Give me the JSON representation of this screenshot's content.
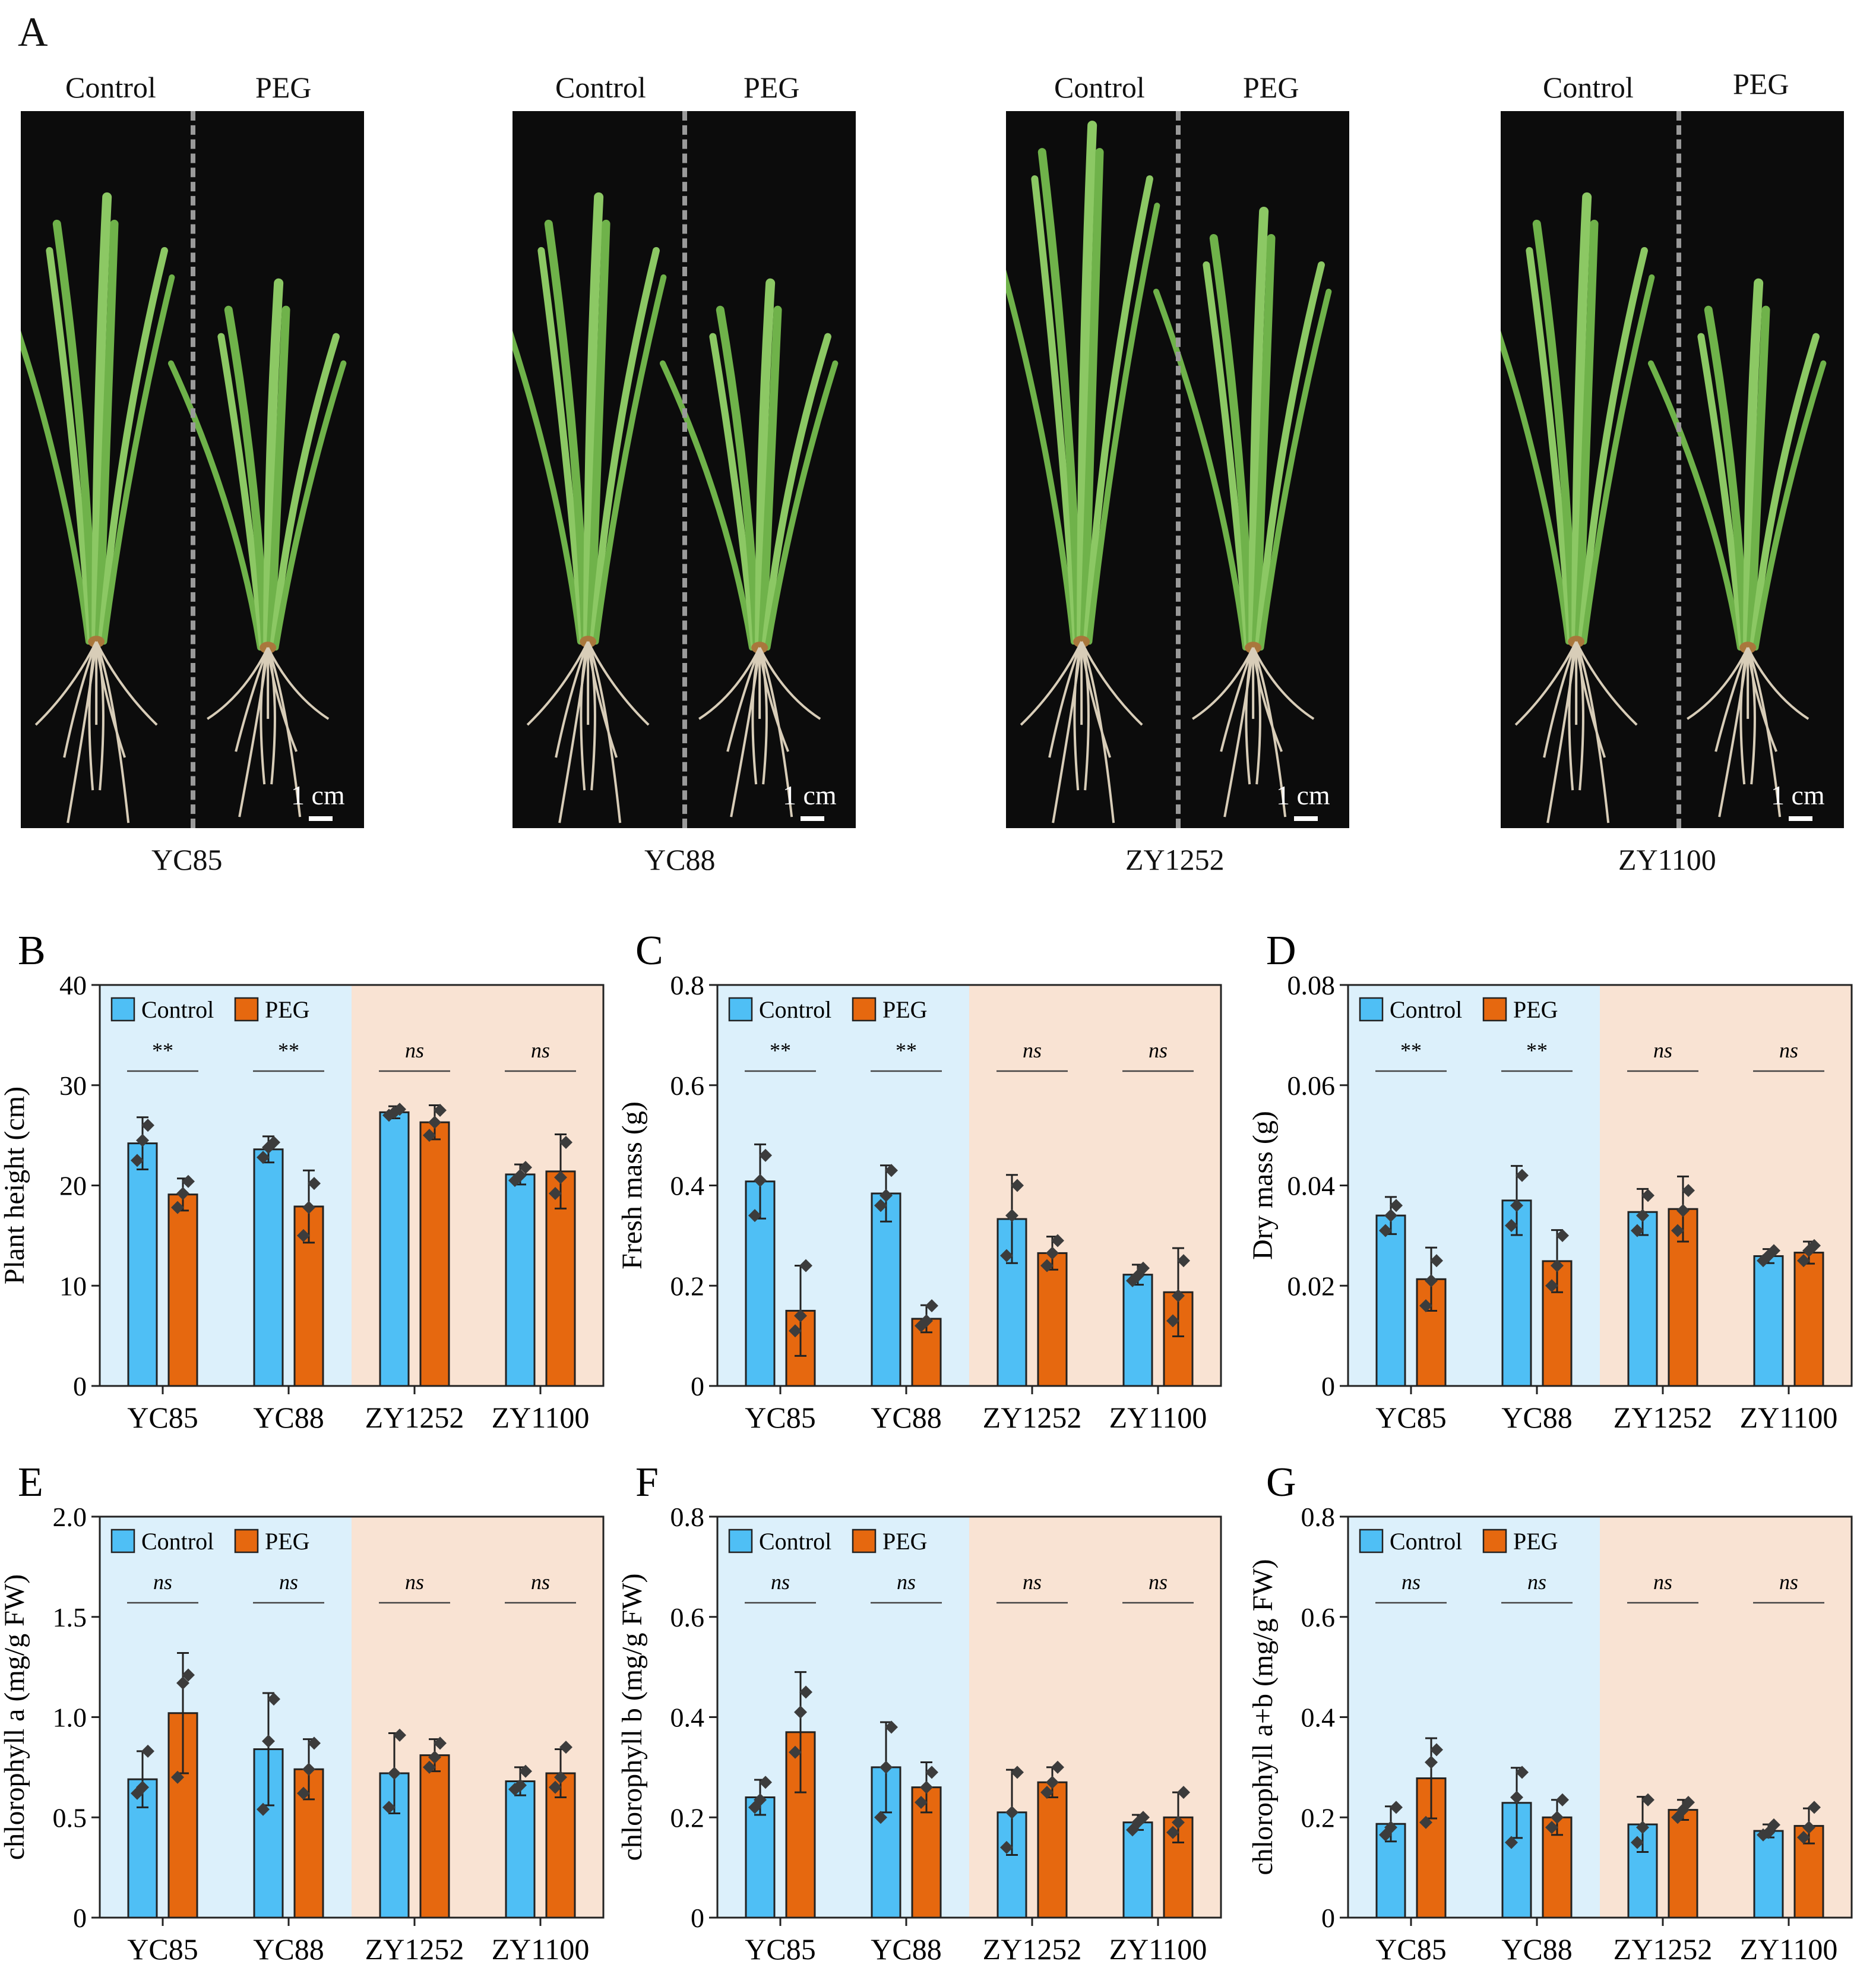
{
  "panel_a": {
    "letter": "A",
    "panels": [
      {
        "control_label": "Control",
        "peg_label": "PEG",
        "genotype": "YC85",
        "scale_label": "1 cm"
      },
      {
        "control_label": "Control",
        "peg_label": "PEG",
        "genotype": "YC88",
        "scale_label": "1 cm"
      },
      {
        "control_label": "Control",
        "peg_label": "PEG",
        "genotype": "ZY1252",
        "scale_label": "1 cm"
      },
      {
        "control_label": "Control",
        "peg_label": "PEG",
        "genotype": "ZY1100",
        "scale_label": "1 cm"
      }
    ]
  },
  "colors": {
    "control": "#4fbff5",
    "peg": "#e6680f",
    "bg_left": "#dcf0fb",
    "bg_right": "#f9e3d3",
    "point": "#3c3c3c"
  },
  "chart_data": [
    {
      "letter": "B",
      "type": "bar",
      "ylabel": "Plant height (cm)",
      "ylim": [
        0,
        40
      ],
      "yticks": [
        0,
        10,
        20,
        30,
        40
      ],
      "categories": [
        "YC85",
        "YC88",
        "ZY1252",
        "ZY1100"
      ],
      "legend": [
        "Control",
        "PEG"
      ],
      "significance": [
        "**",
        "**",
        "ns",
        "ns"
      ],
      "series": [
        {
          "name": "Control",
          "values": [
            24.2,
            23.6,
            27.3,
            21.1
          ],
          "errors": [
            2.6,
            1.3,
            0.6,
            1.0
          ],
          "points": [
            [
              22.5,
              24.5,
              26.0
            ],
            [
              22.8,
              23.8,
              24.3
            ],
            [
              27.0,
              27.3,
              27.6
            ],
            [
              20.5,
              21.0,
              21.8
            ]
          ]
        },
        {
          "name": "PEG",
          "values": [
            19.1,
            17.9,
            26.3,
            21.4
          ],
          "errors": [
            1.6,
            3.6,
            1.7,
            3.7
          ],
          "points": [
            [
              17.8,
              19.2,
              20.4
            ],
            [
              15.0,
              17.8,
              20.2
            ],
            [
              25.0,
              26.3,
              27.5
            ],
            [
              19.2,
              20.8,
              24.3
            ]
          ]
        }
      ]
    },
    {
      "letter": "C",
      "type": "bar",
      "ylabel": "Fresh mass (g)",
      "ylim": [
        0,
        0.8
      ],
      "yticks": [
        "0",
        "0.2",
        "0.4",
        "0.6",
        "0.8"
      ],
      "categories": [
        "YC85",
        "YC88",
        "ZY1252",
        "ZY1100"
      ],
      "legend": [
        "Control",
        "PEG"
      ],
      "significance": [
        "**",
        "**",
        "ns",
        "ns"
      ],
      "series": [
        {
          "name": "Control",
          "values": [
            0.408,
            0.384,
            0.333,
            0.222
          ],
          "errors": [
            0.074,
            0.056,
            0.088,
            0.02
          ],
          "points": [
            [
              0.34,
              0.41,
              0.46
            ],
            [
              0.36,
              0.38,
              0.43
            ],
            [
              0.26,
              0.34,
              0.4
            ],
            [
              0.21,
              0.22,
              0.235
            ]
          ]
        },
        {
          "name": "PEG",
          "values": [
            0.15,
            0.134,
            0.265,
            0.187
          ],
          "errors": [
            0.09,
            0.027,
            0.033,
            0.088
          ],
          "points": [
            [
              0.11,
              0.14,
              0.24
            ],
            [
              0.12,
              0.13,
              0.16
            ],
            [
              0.24,
              0.265,
              0.29
            ],
            [
              0.13,
              0.18,
              0.25
            ]
          ]
        }
      ]
    },
    {
      "letter": "D",
      "type": "bar",
      "ylabel": "Dry mass (g)",
      "ylim": [
        0,
        0.08
      ],
      "yticks": [
        "0",
        "0.02",
        "0.04",
        "0.06",
        "0.08"
      ],
      "categories": [
        "YC85",
        "YC88",
        "ZY1252",
        "ZY1100"
      ],
      "legend": [
        "Control",
        "PEG"
      ],
      "significance": [
        "**",
        "**",
        "ns",
        "ns"
      ],
      "series": [
        {
          "name": "Control",
          "values": [
            0.034,
            0.037,
            0.0347,
            0.0259
          ],
          "errors": [
            0.0037,
            0.0069,
            0.0046,
            0.0014
          ],
          "points": [
            [
              0.031,
              0.034,
              0.036
            ],
            [
              0.032,
              0.036,
              0.042
            ],
            [
              0.031,
              0.034,
              0.038
            ],
            [
              0.025,
              0.026,
              0.027
            ]
          ]
        },
        {
          "name": "PEG",
          "values": [
            0.0213,
            0.0249,
            0.0353,
            0.0266
          ],
          "errors": [
            0.0063,
            0.0062,
            0.0065,
            0.0022
          ],
          "points": [
            [
              0.016,
              0.021,
              0.025
            ],
            [
              0.02,
              0.024,
              0.03
            ],
            [
              0.031,
              0.035,
              0.039
            ],
            [
              0.025,
              0.027,
              0.028
            ]
          ]
        }
      ]
    },
    {
      "letter": "E",
      "type": "bar",
      "ylabel": "chlorophyll a (mg/g FW)",
      "ylim": [
        0,
        2.0
      ],
      "yticks": [
        "0",
        "0.5",
        "1.0",
        "1.5",
        "2.0"
      ],
      "categories": [
        "YC85",
        "YC88",
        "ZY1252",
        "ZY1100"
      ],
      "legend": [
        "Control",
        "PEG"
      ],
      "significance": [
        "ns",
        "ns",
        "ns",
        "ns"
      ],
      "series": [
        {
          "name": "Control",
          "values": [
            0.69,
            0.84,
            0.72,
            0.68
          ],
          "errors": [
            0.14,
            0.28,
            0.2,
            0.07
          ],
          "points": [
            [
              0.62,
              0.65,
              0.83
            ],
            [
              0.54,
              0.88,
              1.09
            ],
            [
              0.55,
              0.72,
              0.91
            ],
            [
              0.64,
              0.66,
              0.73
            ]
          ]
        },
        {
          "name": "PEG",
          "values": [
            1.02,
            0.74,
            0.81,
            0.72
          ],
          "errors": [
            0.3,
            0.15,
            0.08,
            0.12
          ],
          "points": [
            [
              0.7,
              1.17,
              1.21
            ],
            [
              0.62,
              0.74,
              0.87
            ],
            [
              0.75,
              0.8,
              0.87
            ],
            [
              0.65,
              0.7,
              0.85
            ]
          ]
        }
      ]
    },
    {
      "letter": "F",
      "type": "bar",
      "ylabel": "chlorophyll b (mg/g FW)",
      "ylim": [
        0,
        0.8
      ],
      "yticks": [
        "0",
        "0.2",
        "0.4",
        "0.6",
        "0.8"
      ],
      "categories": [
        "YC85",
        "YC88",
        "ZY1252",
        "ZY1100"
      ],
      "legend": [
        "Control",
        "PEG"
      ],
      "significance": [
        "ns",
        "ns",
        "ns",
        "ns"
      ],
      "series": [
        {
          "name": "Control",
          "values": [
            0.24,
            0.3,
            0.21,
            0.19
          ],
          "errors": [
            0.035,
            0.09,
            0.085,
            0.015
          ],
          "points": [
            [
              0.22,
              0.235,
              0.27
            ],
            [
              0.2,
              0.3,
              0.38
            ],
            [
              0.14,
              0.21,
              0.29
            ],
            [
              0.175,
              0.19,
              0.2
            ]
          ]
        },
        {
          "name": "PEG",
          "values": [
            0.37,
            0.26,
            0.27,
            0.2
          ],
          "errors": [
            0.12,
            0.05,
            0.03,
            0.05
          ],
          "points": [
            [
              0.33,
              0.41,
              0.45
            ],
            [
              0.23,
              0.26,
              0.29
            ],
            [
              0.25,
              0.27,
              0.3
            ],
            [
              0.17,
              0.19,
              0.25
            ]
          ]
        }
      ]
    },
    {
      "letter": "G",
      "type": "bar",
      "ylabel": "chlorophyll a+b (mg/g FW)",
      "ylim": [
        0,
        0.8
      ],
      "yticks": [
        "0",
        "0.2",
        "0.4",
        "0.6",
        "0.8"
      ],
      "categories": [
        "YC85",
        "YC88",
        "ZY1252",
        "ZY1100"
      ],
      "legend": [
        "Control",
        "PEG"
      ],
      "significance": [
        "ns",
        "ns",
        "ns",
        "ns"
      ],
      "series": [
        {
          "name": "Control",
          "values": [
            0.187,
            0.229,
            0.186,
            0.173
          ],
          "errors": [
            0.035,
            0.07,
            0.055,
            0.013
          ],
          "points": [
            [
              0.165,
              0.18,
              0.22
            ],
            [
              0.15,
              0.24,
              0.29
            ],
            [
              0.15,
              0.18,
              0.235
            ],
            [
              0.165,
              0.17,
              0.185
            ]
          ]
        },
        {
          "name": "PEG",
          "values": [
            0.278,
            0.2,
            0.215,
            0.183
          ],
          "errors": [
            0.08,
            0.035,
            0.02,
            0.035
          ],
          "points": [
            [
              0.19,
              0.31,
              0.335
            ],
            [
              0.18,
              0.2,
              0.235
            ],
            [
              0.2,
              0.215,
              0.23
            ],
            [
              0.16,
              0.18,
              0.22
            ]
          ]
        }
      ]
    }
  ]
}
